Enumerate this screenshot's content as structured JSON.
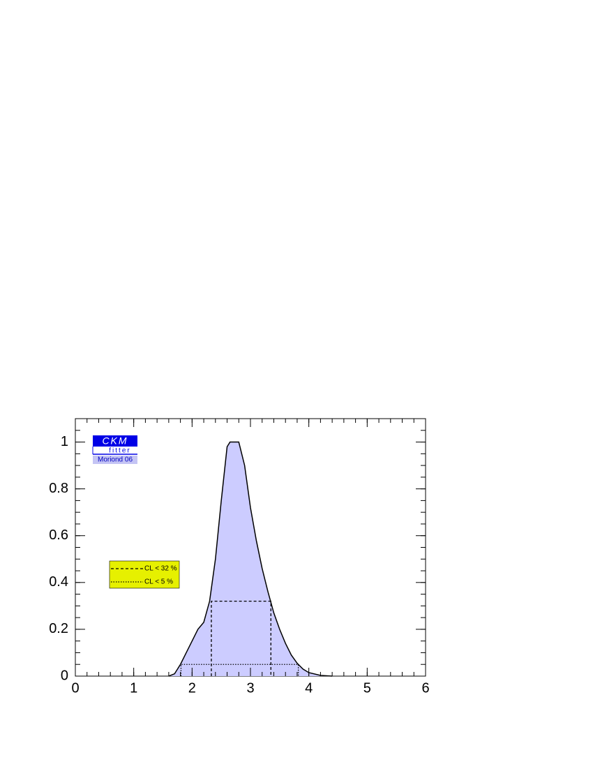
{
  "chart_data": {
    "type": "area",
    "x": [
      1.6,
      1.7,
      1.8,
      1.9,
      2.0,
      2.1,
      2.2,
      2.3,
      2.4,
      2.5,
      2.6,
      2.65,
      2.8,
      2.9,
      3.0,
      3.1,
      3.2,
      3.3,
      3.4,
      3.5,
      3.6,
      3.7,
      3.8,
      3.9,
      4.0,
      4.2,
      4.4
    ],
    "values": [
      0,
      0.01,
      0.05,
      0.1,
      0.15,
      0.2,
      0.23,
      0.32,
      0.5,
      0.75,
      0.98,
      1.0,
      1.0,
      0.9,
      0.72,
      0.58,
      0.46,
      0.36,
      0.27,
      0.2,
      0.14,
      0.09,
      0.055,
      0.03,
      0.015,
      0.003,
      0
    ],
    "color": "#ccccff",
    "intervals": [
      {
        "name": "CL < 32 %",
        "level": 0.32,
        "range": [
          2.33,
          3.35
        ],
        "style": "dashed"
      },
      {
        "name": "CL <  5 %",
        "level": 0.05,
        "range": [
          1.81,
          3.82
        ],
        "style": "dotted"
      }
    ],
    "legend_color": "#e6f000",
    "logo": {
      "top": "CKM",
      "middle": "fitter",
      "bottom": "Moriond 06"
    },
    "xlim": [
      0,
      6
    ],
    "xticks": [
      0,
      1,
      2,
      3,
      4,
      5,
      6
    ],
    "ylim": [
      0,
      1.1
    ],
    "yticks": [
      0,
      0.2,
      0.4,
      0.6,
      0.8,
      1
    ]
  }
}
